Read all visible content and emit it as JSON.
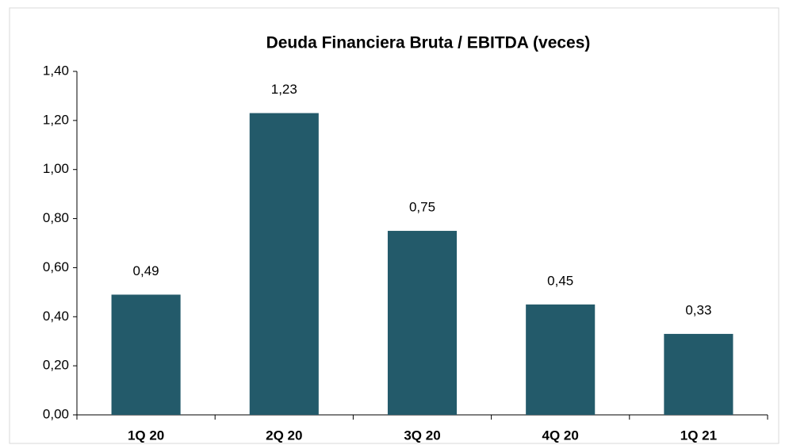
{
  "chart_data": {
    "type": "bar",
    "title": "Deuda Financiera Bruta / EBITDA (veces)",
    "categories": [
      "1Q 20",
      "2Q 20",
      "3Q 20",
      "4Q 20",
      "1Q 21"
    ],
    "values": [
      0.49,
      1.23,
      0.75,
      0.45,
      0.33
    ],
    "value_labels": [
      "0,49",
      "1,23",
      "0,75",
      "0,45",
      "0,33"
    ],
    "color": "#235a6a",
    "ylim": [
      0,
      1.4
    ],
    "yticks": [
      {
        "value": 0,
        "label": "0,00"
      },
      {
        "value": 0.2,
        "label": "0,20"
      },
      {
        "value": 0.4,
        "label": "0,40"
      },
      {
        "value": 0.6,
        "label": "0,60"
      },
      {
        "value": 0.8,
        "label": "0,80"
      },
      {
        "value": 1.0,
        "label": "1,00"
      },
      {
        "value": 1.2,
        "label": "1,20"
      },
      {
        "value": 1.4,
        "label": "1,40"
      }
    ],
    "grid": false
  }
}
